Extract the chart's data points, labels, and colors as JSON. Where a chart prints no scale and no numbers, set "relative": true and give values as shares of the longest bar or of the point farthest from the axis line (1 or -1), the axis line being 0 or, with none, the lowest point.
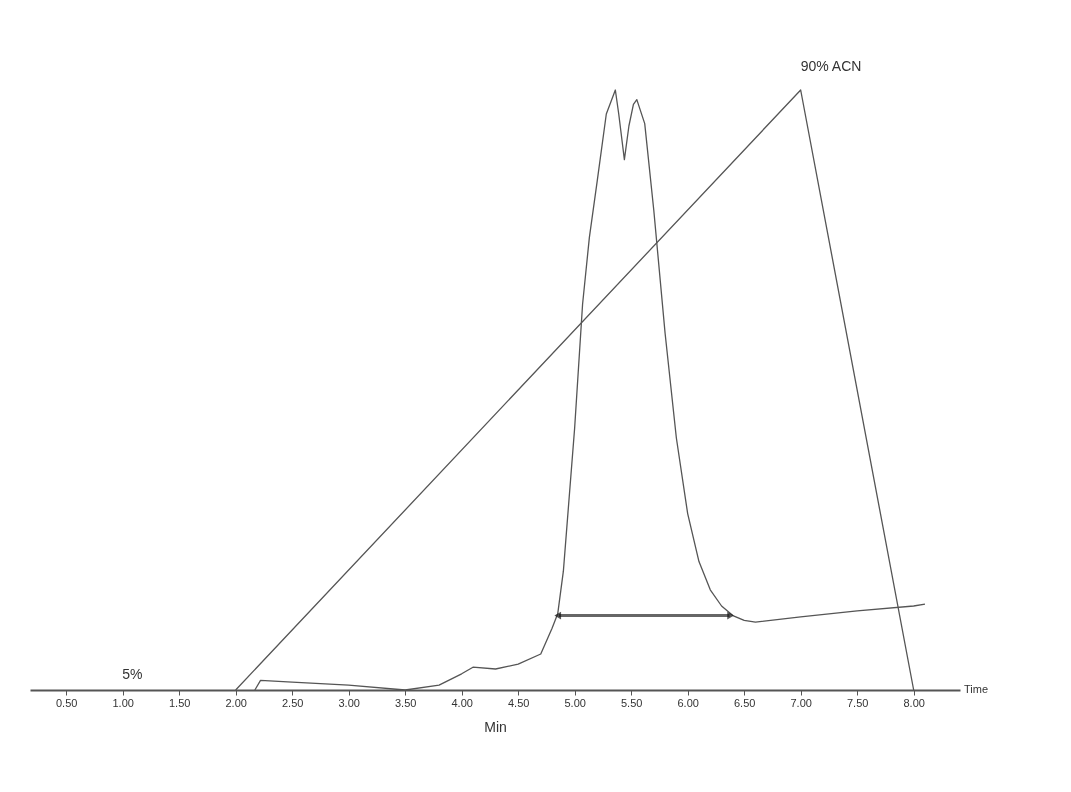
{
  "chart_data": {
    "type": "line",
    "relative": true,
    "xlabel": "Min",
    "xlim": [
      0.18,
      8.41
    ],
    "xticks": [
      {
        "value": 0.5,
        "label": "0.50"
      },
      {
        "value": 1.0,
        "label": "1.00"
      },
      {
        "value": 1.5,
        "label": "1.50"
      },
      {
        "value": 2.0,
        "label": "2.00"
      },
      {
        "value": 2.5,
        "label": "2.50"
      },
      {
        "value": 3.0,
        "label": "3.00"
      },
      {
        "value": 3.5,
        "label": "3.50"
      },
      {
        "value": 4.0,
        "label": "4.00"
      },
      {
        "value": 4.5,
        "label": "4.50"
      },
      {
        "value": 5.0,
        "label": "5.00"
      },
      {
        "value": 5.5,
        "label": "5.50"
      },
      {
        "value": 6.0,
        "label": "6.00"
      },
      {
        "value": 6.5,
        "label": "6.50"
      },
      {
        "value": 7.0,
        "label": "7.00"
      },
      {
        "value": 7.5,
        "label": "7.50"
      },
      {
        "value": 8.0,
        "label": "8.00"
      }
    ],
    "grid": false,
    "series": [
      {
        "color": "#555555",
        "x": [
          2.0,
          7.0,
          8.0
        ],
        "values": [
          0,
          1.0,
          0
        ]
      },
      {
        "color": "#555555",
        "x": [
          2.17,
          2.22,
          2.5,
          3.0,
          3.5,
          3.8,
          4.0,
          4.1,
          4.3,
          4.5,
          4.7,
          4.8,
          4.85,
          4.9,
          5.0,
          5.07,
          5.13,
          5.2,
          5.28,
          5.36,
          5.39,
          5.44,
          5.48,
          5.52,
          5.55,
          5.62,
          5.7,
          5.8,
          5.9,
          6.0,
          6.1,
          6.2,
          6.3,
          6.4,
          6.5,
          6.6,
          7.0,
          7.5,
          8.0,
          8.1
        ],
        "values": [
          0,
          0.016,
          0.013,
          0.008,
          0,
          0.008,
          0.027,
          0.038,
          0.035,
          0.043,
          0.06,
          0.103,
          0.127,
          0.198,
          0.437,
          0.643,
          0.754,
          0.849,
          0.96,
          1.0,
          0.96,
          0.884,
          0.94,
          0.976,
          0.984,
          0.944,
          0.8,
          0.595,
          0.42,
          0.294,
          0.214,
          0.167,
          0.14,
          0.124,
          0.116,
          0.113,
          0.122,
          0.132,
          0.14,
          0.143
        ]
      }
    ],
    "annotations": [
      "5%",
      {
        "text": "90% ACN",
        "x": 7.0,
        "y": 1.0
      },
      "Time"
    ]
  }
}
